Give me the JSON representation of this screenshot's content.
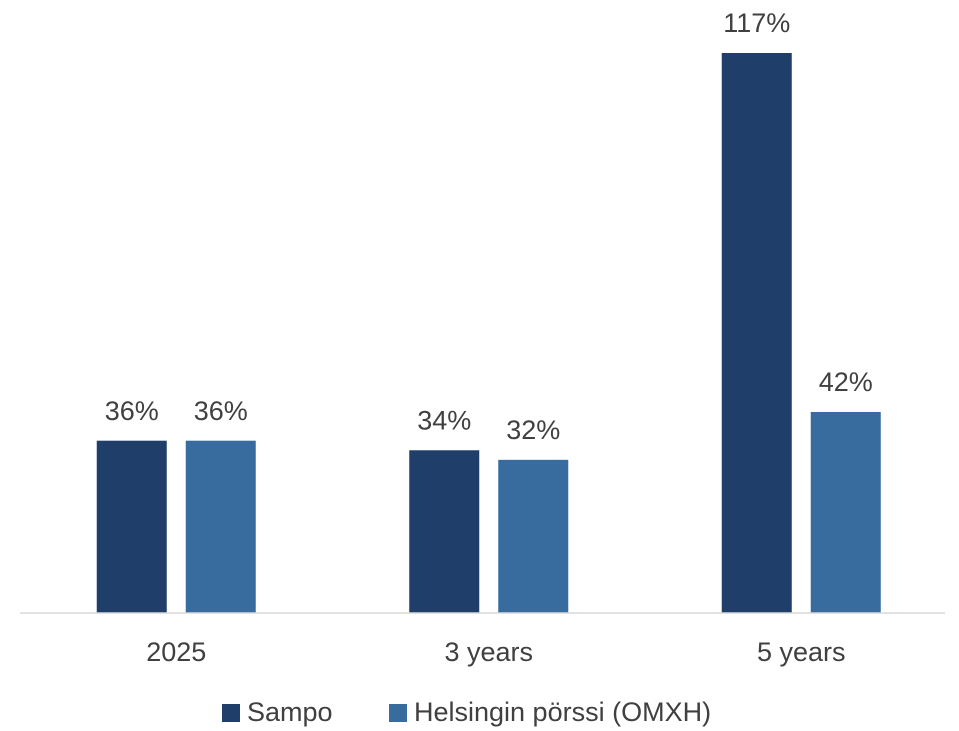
{
  "chart_data": {
    "type": "bar",
    "categories": [
      "2025",
      "3 years",
      "5 years"
    ],
    "series": [
      {
        "name": "Sampo",
        "color": "#1f3f6a",
        "values": [
          36,
          34,
          117
        ],
        "value_labels": [
          "36%",
          "34%",
          "117%"
        ]
      },
      {
        "name": "Helsingin pörssi (OMXH)",
        "color": "#386b9e",
        "values": [
          36,
          32,
          42
        ],
        "value_labels": [
          "36%",
          "32%",
          "42%"
        ]
      }
    ],
    "legend": "bottom"
  }
}
